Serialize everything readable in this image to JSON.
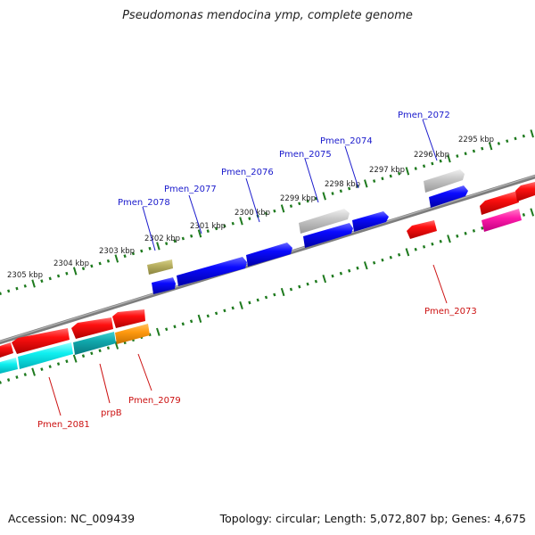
{
  "title": "Pseudomonas mendocina ymp, complete genome",
  "footer": {
    "accession": "Accession: NC_009439",
    "topology": "Topology: circular; Length: 5,072,807 bp; Genes: 4,675"
  },
  "colors": {
    "backbone": "#8a8a8a",
    "ticks": "#1e7a1e",
    "forward_label": "#1a1acc",
    "reverse_label": "#cc1111"
  },
  "scale_labels": [
    "2305 kbp",
    "2304 kbp",
    "2303 kbp",
    "2302 kbp",
    "2301 kbp",
    "2300 kbp",
    "2299 kbp",
    "2298 kbp",
    "2297 kbp",
    "2296 kbp",
    "2295 kbp"
  ],
  "gene_labels": {
    "forward": [
      "Pmen_2078",
      "Pmen_2077",
      "Pmen_2076",
      "Pmen_2075",
      "Pmen_2074",
      "Pmen_2072"
    ],
    "reverse": [
      "Pmen_2081",
      "prpB",
      "Pmen_2079",
      "Pmen_2073"
    ]
  }
}
